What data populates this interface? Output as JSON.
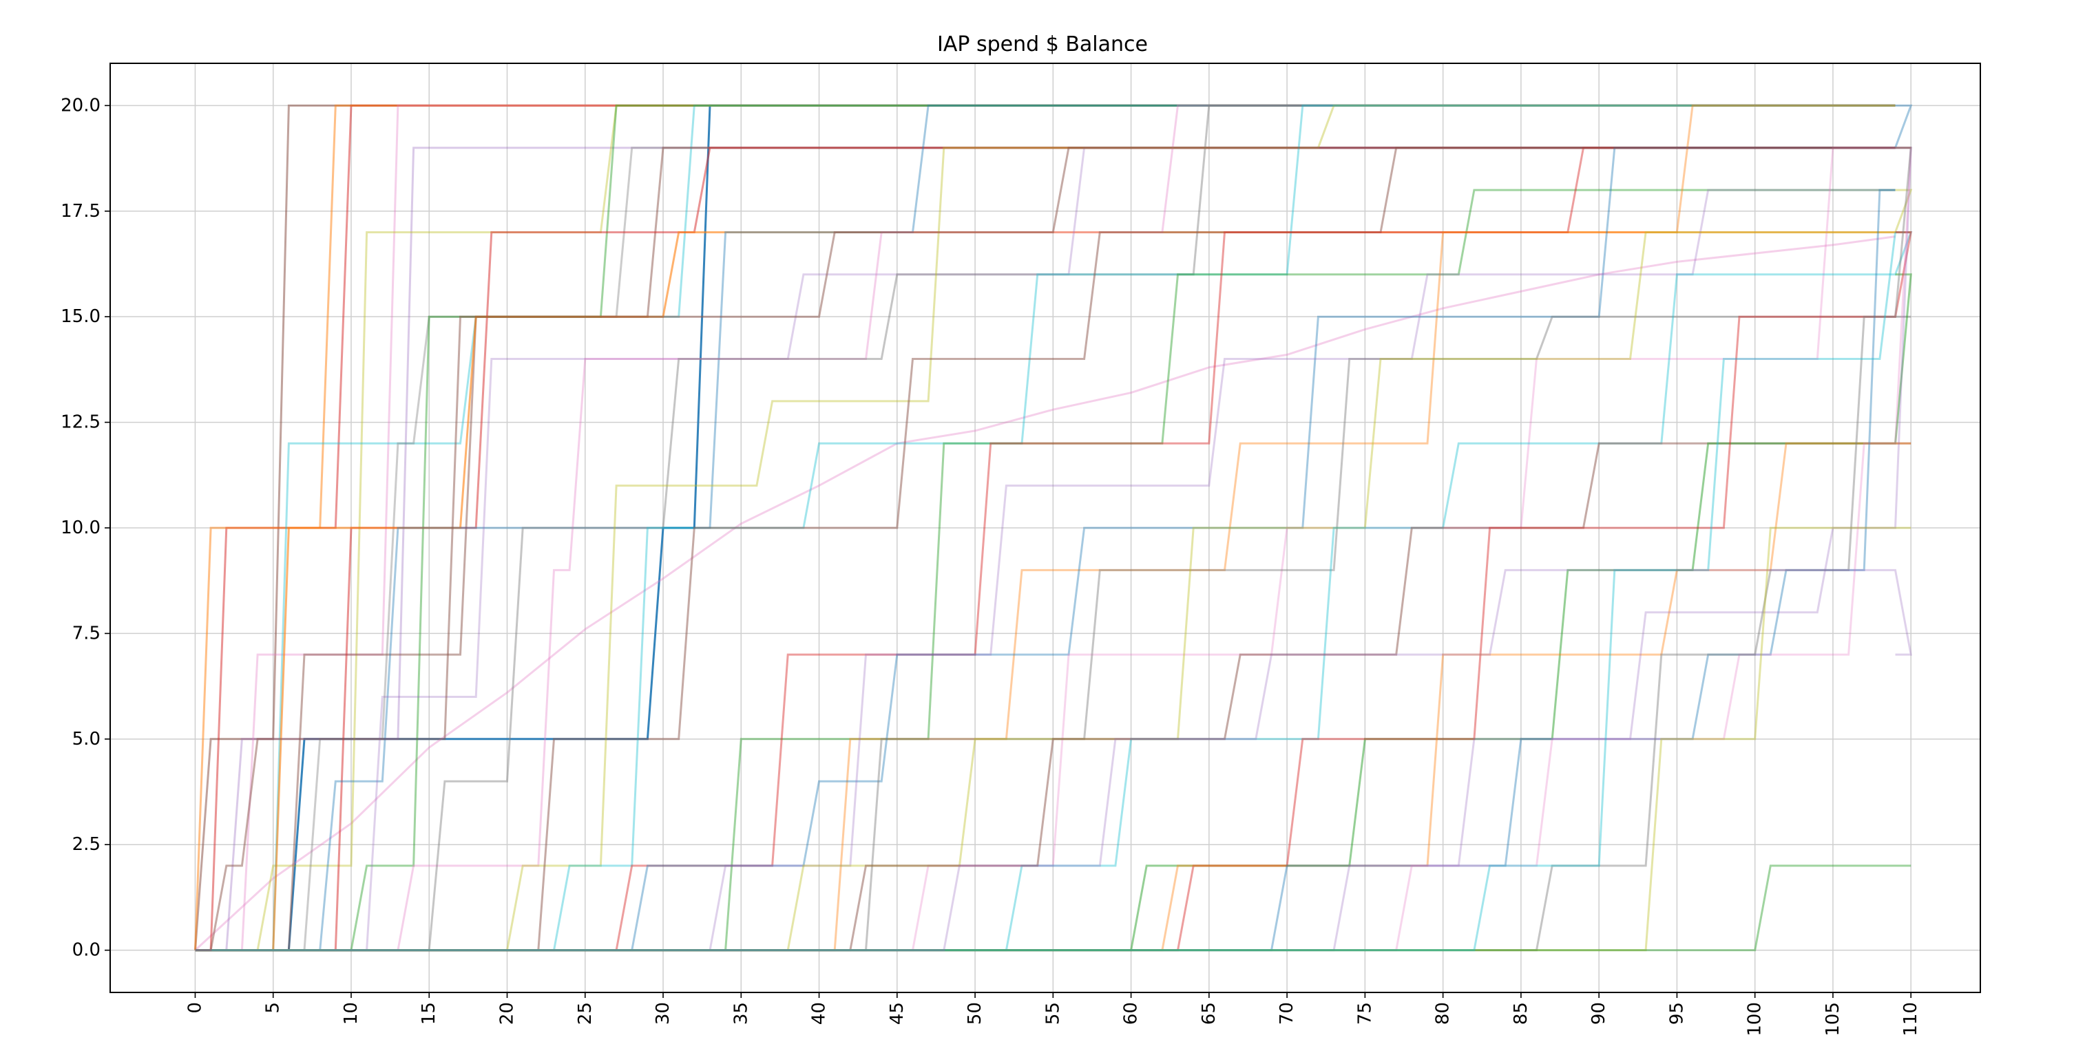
{
  "chart_data": {
    "type": "line",
    "title": "IAP spend $ Balance",
    "xlabel": "",
    "ylabel": "",
    "xlim": [
      -5.45,
      114.45
    ],
    "ylim": [
      -1,
      21
    ],
    "grid": true,
    "x_ticks": [
      0,
      5,
      10,
      15,
      20,
      25,
      30,
      35,
      40,
      45,
      50,
      55,
      60,
      65,
      70,
      75,
      80,
      85,
      90,
      95,
      100,
      105,
      110
    ],
    "y_ticks": [
      0.0,
      2.5,
      5.0,
      7.5,
      10.0,
      12.5,
      15.0,
      17.5,
      20.0
    ],
    "y_tick_labels": [
      "0.0",
      "2.5",
      "5.0",
      "7.5",
      "10.0",
      "12.5",
      "15.0",
      "17.5",
      "20.0"
    ],
    "series": [
      {
        "color": "#1f77b4",
        "alpha": 0.9,
        "width": 3.6,
        "steps": [
          [
            6,
            5
          ],
          [
            29,
            10
          ],
          [
            32,
            20
          ]
        ]
      },
      {
        "color": "#e377c2",
        "alpha": 0.35,
        "smooth": true,
        "values_xy": [
          [
            0,
            0
          ],
          [
            5,
            1.7
          ],
          [
            10,
            3.0
          ],
          [
            15,
            4.8
          ],
          [
            20,
            6.1
          ],
          [
            25,
            7.6
          ],
          [
            30,
            8.8
          ],
          [
            35,
            10.1
          ],
          [
            40,
            11.0
          ],
          [
            45,
            12.0
          ],
          [
            50,
            12.3
          ],
          [
            55,
            12.8
          ],
          [
            60,
            13.2
          ],
          [
            65,
            13.8
          ],
          [
            70,
            14.1
          ],
          [
            75,
            14.7
          ],
          [
            80,
            15.2
          ],
          [
            85,
            15.6
          ],
          [
            90,
            16.0
          ],
          [
            95,
            16.3
          ],
          [
            100,
            16.5
          ],
          [
            105,
            16.7
          ],
          [
            109,
            16.9
          ]
        ]
      },
      {
        "color": "#8c564b",
        "alpha": 0.55,
        "steps": [
          [
            0,
            5
          ],
          [
            5,
            20
          ]
        ]
      },
      {
        "color": "#d62728",
        "alpha": 0.5,
        "steps": [
          [
            1,
            10
          ],
          [
            9,
            20
          ]
        ]
      },
      {
        "color": "#ff7f0e",
        "alpha": 0.5,
        "steps": [
          [
            0,
            10
          ],
          [
            8,
            20
          ]
        ]
      },
      {
        "color": "#9467bd",
        "alpha": 0.35,
        "steps": [
          [
            2,
            5
          ],
          [
            13,
            19
          ]
        ]
      },
      {
        "color": "#e377c2",
        "alpha": 0.35,
        "steps": [
          [
            3,
            7
          ],
          [
            12,
            20
          ]
        ]
      },
      {
        "color": "#bcbd22",
        "alpha": 0.4,
        "steps": [
          [
            4,
            2
          ],
          [
            10,
            17
          ],
          [
            26,
            20
          ]
        ]
      },
      {
        "color": "#17becf",
        "alpha": 0.4,
        "steps": [
          [
            5,
            12
          ],
          [
            17,
            15
          ],
          [
            31,
            20
          ]
        ]
      },
      {
        "color": "#7f7f7f",
        "alpha": 0.4,
        "steps": [
          [
            7,
            5
          ],
          [
            12,
            12
          ],
          [
            14,
            15
          ],
          [
            27,
            19
          ]
        ]
      },
      {
        "color": "#8c564b",
        "alpha": 0.5,
        "steps": [
          [
            6,
            7
          ],
          [
            17,
            15
          ],
          [
            29,
            19
          ]
        ]
      },
      {
        "color": "#2ca02c",
        "alpha": 0.45,
        "steps": [
          [
            10,
            2
          ],
          [
            14,
            15
          ],
          [
            26,
            20
          ]
        ]
      },
      {
        "color": "#d62728",
        "alpha": 0.5,
        "steps": [
          [
            9,
            10
          ],
          [
            18,
            17
          ],
          [
            32,
            19
          ],
          [
            49,
            19
          ]
        ]
      },
      {
        "color": "#ff7f0e",
        "alpha": 0.6,
        "steps": [
          [
            5,
            10
          ],
          [
            17,
            15
          ],
          [
            30,
            17
          ],
          [
            109,
            17
          ]
        ]
      },
      {
        "color": "#1f77b4",
        "alpha": 0.4,
        "steps": [
          [
            8,
            4
          ],
          [
            12,
            10
          ],
          [
            33,
            17
          ],
          [
            46,
            20
          ]
        ]
      },
      {
        "color": "#9467bd",
        "alpha": 0.3,
        "steps": [
          [
            11,
            6
          ],
          [
            18,
            14
          ],
          [
            38,
            16
          ],
          [
            56,
            19
          ]
        ]
      },
      {
        "color": "#e377c2",
        "alpha": 0.35,
        "steps": [
          [
            13,
            2
          ],
          [
            22,
            9
          ],
          [
            24,
            14
          ],
          [
            43,
            17
          ],
          [
            62,
            20
          ]
        ]
      },
      {
        "color": "#7f7f7f",
        "alpha": 0.45,
        "steps": [
          [
            15,
            4
          ],
          [
            20,
            10
          ],
          [
            30,
            14
          ],
          [
            44,
            16
          ],
          [
            64,
            20
          ]
        ]
      },
      {
        "color": "#bcbd22",
        "alpha": 0.4,
        "steps": [
          [
            20,
            2
          ],
          [
            26,
            11
          ],
          [
            36,
            13
          ],
          [
            47,
            19
          ],
          [
            72,
            20
          ]
        ]
      },
      {
        "color": "#17becf",
        "alpha": 0.4,
        "steps": [
          [
            23,
            2
          ],
          [
            28,
            10
          ],
          [
            39,
            12
          ],
          [
            53,
            16
          ],
          [
            70,
            20
          ]
        ]
      },
      {
        "color": "#8c564b",
        "alpha": 0.5,
        "steps": [
          [
            22,
            5
          ],
          [
            31,
            10
          ],
          [
            45,
            14
          ],
          [
            57,
            17
          ],
          [
            76,
            19
          ]
        ]
      },
      {
        "color": "#2ca02c",
        "alpha": 0.45,
        "steps": [
          [
            25,
            0
          ],
          [
            34,
            5
          ],
          [
            47,
            12
          ],
          [
            62,
            16
          ],
          [
            81,
            18
          ]
        ]
      },
      {
        "color": "#d62728",
        "alpha": 0.45,
        "steps": [
          [
            27,
            2
          ],
          [
            37,
            7
          ],
          [
            50,
            12
          ],
          [
            65,
            17
          ],
          [
            88,
            19
          ]
        ]
      },
      {
        "color": "#ff7f0e",
        "alpha": 0.4,
        "steps": [
          [
            30,
            0
          ],
          [
            41,
            5
          ],
          [
            52,
            9
          ],
          [
            66,
            12
          ],
          [
            79,
            17
          ],
          [
            95,
            20
          ]
        ]
      },
      {
        "color": "#1f77b4",
        "alpha": 0.4,
        "steps": [
          [
            28,
            2
          ],
          [
            39,
            4
          ],
          [
            44,
            7
          ],
          [
            56,
            10
          ],
          [
            71,
            15
          ],
          [
            90,
            19
          ],
          [
            109,
            20
          ]
        ]
      },
      {
        "color": "#9467bd",
        "alpha": 0.3,
        "steps": [
          [
            33,
            2
          ],
          [
            42,
            7
          ],
          [
            51,
            11
          ],
          [
            65,
            14
          ],
          [
            78,
            16
          ],
          [
            96,
            18
          ]
        ]
      },
      {
        "color": "#e377c2",
        "alpha": 0.3,
        "steps": [
          [
            35,
            0
          ],
          [
            46,
            2
          ],
          [
            55,
            7
          ],
          [
            69,
            10
          ],
          [
            85,
            14
          ],
          [
            104,
            19
          ]
        ]
      },
      {
        "color": "#7f7f7f",
        "alpha": 0.45,
        "steps": [
          [
            31,
            0
          ],
          [
            43,
            5
          ],
          [
            57,
            9
          ],
          [
            73,
            14
          ],
          [
            86,
            15
          ],
          [
            109,
            15
          ]
        ]
      },
      {
        "color": "#bcbd22",
        "alpha": 0.4,
        "steps": [
          [
            38,
            2
          ],
          [
            49,
            5
          ],
          [
            63,
            10
          ],
          [
            75,
            14
          ],
          [
            92,
            17
          ],
          [
            109,
            18
          ]
        ]
      },
      {
        "color": "#17becf",
        "alpha": 0.4,
        "steps": [
          [
            40,
            0
          ],
          [
            52,
            2
          ],
          [
            59,
            5
          ],
          [
            72,
            10
          ],
          [
            80,
            12
          ],
          [
            94,
            16
          ],
          [
            109,
            17
          ]
        ]
      },
      {
        "color": "#8c564b",
        "alpha": 0.5,
        "steps": [
          [
            42,
            2
          ],
          [
            54,
            5
          ],
          [
            66,
            7
          ],
          [
            77,
            10
          ],
          [
            89,
            12
          ],
          [
            109,
            12
          ]
        ]
      },
      {
        "color": "#2ca02c",
        "alpha": 0.5,
        "steps": [
          [
            45,
            0
          ],
          [
            60,
            2
          ],
          [
            74,
            5
          ],
          [
            87,
            9
          ],
          [
            96,
            12
          ],
          [
            109,
            16
          ]
        ]
      },
      {
        "color": "#d62728",
        "alpha": 0.45,
        "steps": [
          [
            48,
            0
          ],
          [
            63,
            2
          ],
          [
            70,
            5
          ],
          [
            82,
            10
          ],
          [
            98,
            15
          ],
          [
            109,
            17
          ]
        ]
      },
      {
        "color": "#ff7f0e",
        "alpha": 0.4,
        "steps": [
          [
            60,
            0
          ],
          [
            62,
            2
          ],
          [
            79,
            7
          ],
          [
            94,
            9
          ],
          [
            101,
            12
          ],
          [
            109,
            12
          ]
        ]
      },
      {
        "color": "#1f77b4",
        "alpha": 0.4,
        "steps": [
          [
            67,
            0
          ],
          [
            69,
            2
          ],
          [
            84,
            5
          ],
          [
            96,
            7
          ],
          [
            101,
            9
          ],
          [
            107,
            18
          ]
        ]
      },
      {
        "color": "#9467bd",
        "alpha": 0.3,
        "steps": [
          [
            71,
            0
          ],
          [
            73,
            2
          ],
          [
            81,
            5
          ],
          [
            92,
            8
          ],
          [
            104,
            10
          ],
          [
            109,
            19
          ]
        ]
      },
      {
        "color": "#e377c2",
        "alpha": 0.3,
        "steps": [
          [
            75,
            0
          ],
          [
            77,
            2
          ],
          [
            86,
            5
          ],
          [
            98,
            7
          ],
          [
            106,
            12
          ],
          [
            109,
            19
          ]
        ]
      },
      {
        "color": "#7f7f7f",
        "alpha": 0.45,
        "steps": [
          [
            84,
            0
          ],
          [
            86,
            2
          ],
          [
            93,
            7
          ],
          [
            100,
            9
          ],
          [
            106,
            15
          ],
          [
            109,
            19
          ]
        ]
      },
      {
        "color": "#bcbd22",
        "alpha": 0.4,
        "steps": [
          [
            91,
            0
          ],
          [
            93,
            5
          ],
          [
            100,
            10
          ],
          [
            109,
            10
          ]
        ]
      },
      {
        "color": "#2ca02c",
        "alpha": 0.45,
        "steps": [
          [
            99,
            0
          ],
          [
            100,
            2
          ],
          [
            109,
            2
          ]
        ]
      },
      {
        "color": "#17becf",
        "alpha": 0.4,
        "steps": [
          [
            80,
            0
          ],
          [
            82,
            2
          ],
          [
            90,
            9
          ],
          [
            97,
            14
          ],
          [
            102,
            14
          ],
          [
            108,
            17
          ]
        ]
      },
      {
        "color": "#8c564b",
        "alpha": 0.5,
        "steps": [
          [
            1,
            2
          ],
          [
            3,
            5
          ],
          [
            16,
            15
          ],
          [
            40,
            17
          ],
          [
            55,
            19
          ],
          [
            109,
            19
          ]
        ]
      },
      {
        "color": "#9467bd",
        "alpha": 0.3,
        "steps": [
          [
            36,
            0
          ],
          [
            48,
            2
          ],
          [
            58,
            5
          ],
          [
            68,
            7
          ],
          [
            83,
            9
          ],
          [
            109,
            7
          ]
        ]
      }
    ]
  }
}
